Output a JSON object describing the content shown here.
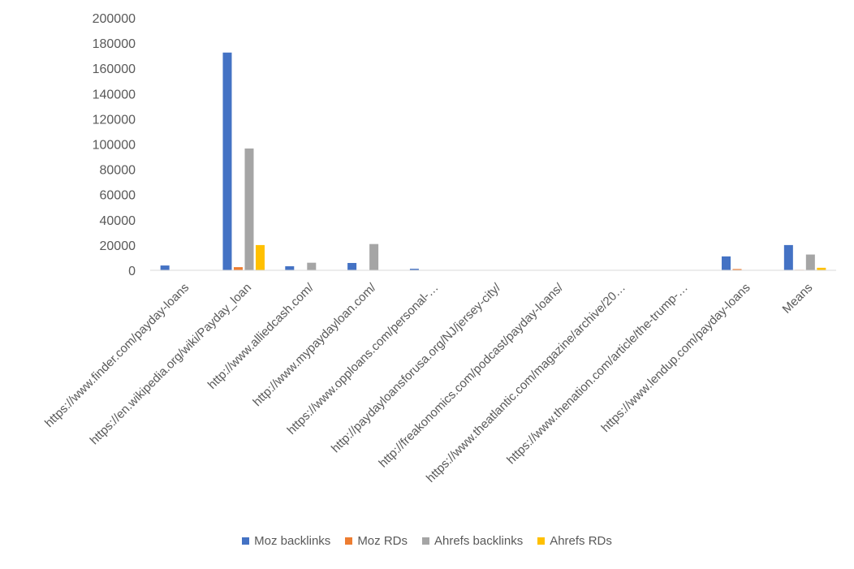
{
  "chart_data": {
    "type": "bar",
    "categories": [
      "https://www.finder.com/payday-loans",
      "https://en.wikipedia.org/wiki/Payday_loan",
      "http://www.alliedcash.com/",
      "http://www.mypaydayloan.com/",
      "https://www.opploans.com/personal-…",
      "http://paydayloansforusa.org/NJ/jersey-city/",
      "http://freakonomics.com/podcast/payday-loans/",
      "https://www.theatlantic.com/magazine/archive/20…",
      "https://www.thenation.com/article/the-trump-…",
      "https://www.lendup.com/payday-loans",
      "Means"
    ],
    "series": [
      {
        "name": "Moz backlinks",
        "color": "#4472C4",
        "values": [
          3800,
          172500,
          3200,
          5800,
          1200,
          0,
          0,
          0,
          0,
          11000,
          20000
        ]
      },
      {
        "name": "Moz RDs",
        "color": "#ED7D31",
        "values": [
          100,
          2500,
          100,
          100,
          50,
          0,
          0,
          0,
          0,
          1000,
          400
        ]
      },
      {
        "name": "Ahrefs backlinks",
        "color": "#A5A5A5",
        "values": [
          0,
          96500,
          6000,
          20800,
          0,
          0,
          0,
          0,
          0,
          0,
          12500
        ]
      },
      {
        "name": "Ahrefs RDs",
        "color": "#FFC000",
        "values": [
          0,
          20000,
          0,
          0,
          0,
          0,
          0,
          0,
          0,
          0,
          2000
        ]
      }
    ],
    "y_ticks": [
      "0",
      "20000",
      "40000",
      "60000",
      "80000",
      "100000",
      "120000",
      "140000",
      "160000",
      "180000",
      "200000"
    ],
    "ylim": [
      0,
      200000
    ],
    "grid": false,
    "legend_position": "bottom"
  }
}
